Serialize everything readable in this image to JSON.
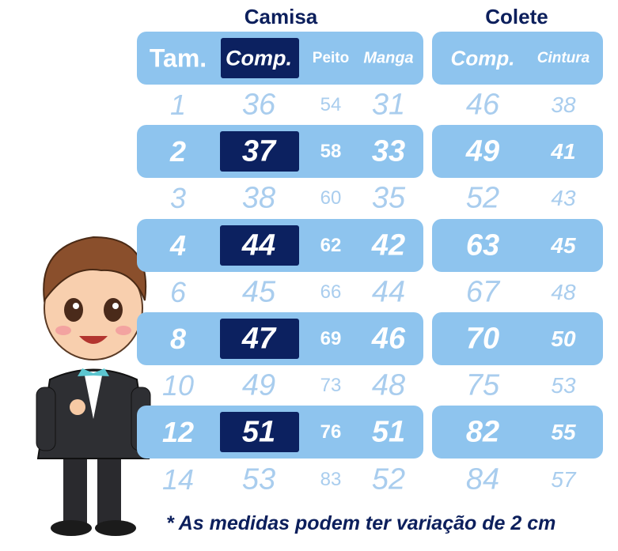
{
  "groups": {
    "shirt": "Camisa",
    "vest": "Colete"
  },
  "headers": [
    "Tam.",
    "Comp.",
    "Peito",
    "Manga",
    "Comp.",
    "Cintura"
  ],
  "rows": [
    [
      "1",
      "36",
      "54",
      "31",
      "46",
      "38"
    ],
    [
      "2",
      "37",
      "58",
      "33",
      "49",
      "41"
    ],
    [
      "3",
      "38",
      "60",
      "35",
      "52",
      "43"
    ],
    [
      "4",
      "44",
      "62",
      "42",
      "63",
      "45"
    ],
    [
      "6",
      "45",
      "66",
      "44",
      "67",
      "48"
    ],
    [
      "8",
      "47",
      "69",
      "46",
      "70",
      "50"
    ],
    [
      "10",
      "49",
      "73",
      "48",
      "75",
      "53"
    ],
    [
      "12",
      "51",
      "76",
      "51",
      "82",
      "55"
    ],
    [
      "14",
      "53",
      "83",
      "52",
      "84",
      "57"
    ]
  ],
  "note": "* As medidas podem ter variação de 2 cm",
  "colors": {
    "bar": "#8ec4ee",
    "dark": "#0c2160",
    "light_text": "#a9cdee",
    "title": "#0c1f5c"
  }
}
